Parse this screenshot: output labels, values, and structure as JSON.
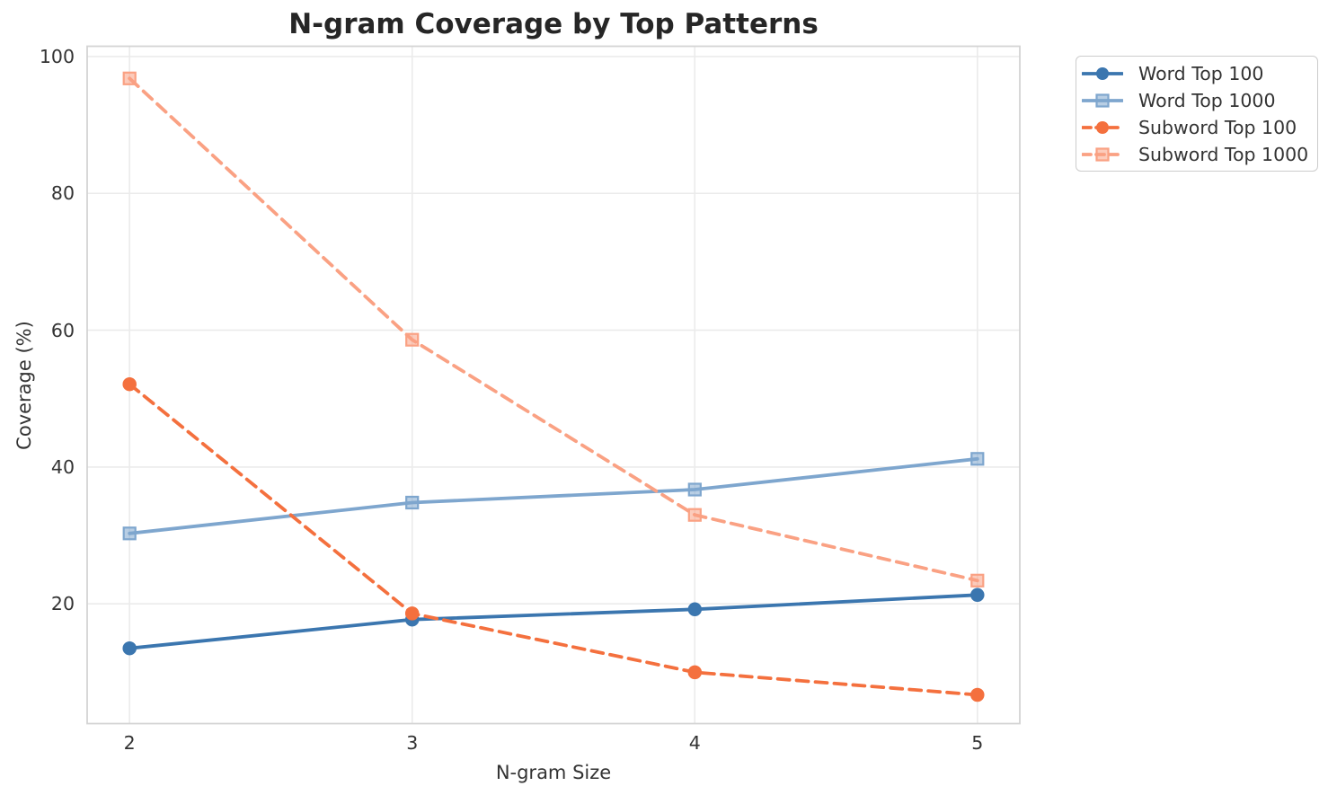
{
  "title": "N-gram Coverage by Top Patterns",
  "chart_data": {
    "type": "line",
    "title": "N-gram Coverage by Top Patterns",
    "xlabel": "N-gram Size",
    "ylabel": "Coverage (%)",
    "x": [
      2,
      3,
      4,
      5
    ],
    "series": [
      {
        "name": "Word Top 100",
        "values": [
          13.5,
          17.7,
          19.2,
          21.3
        ],
        "color": "#3b76af",
        "marker": "circle",
        "line_style": "solid"
      },
      {
        "name": "Word Top 1000",
        "values": [
          30.3,
          34.8,
          36.7,
          41.2
        ],
        "color": "#7ea6ce",
        "marker": "square",
        "line_style": "solid"
      },
      {
        "name": "Subword Top 100",
        "values": [
          52.1,
          18.6,
          10.0,
          6.7
        ],
        "color": "#f4703e",
        "marker": "circle",
        "line_style": "dashed"
      },
      {
        "name": "Subword Top 1000",
        "values": [
          96.8,
          58.6,
          33.0,
          23.4
        ],
        "color": "#faa183",
        "marker": "square",
        "line_style": "dashed"
      }
    ],
    "xticks": [
      2,
      3,
      4,
      5
    ],
    "yticks": [
      20,
      40,
      60,
      80,
      100
    ],
    "xlim": [
      1.85,
      5.15
    ],
    "ylim": [
      2.5,
      101.5
    ],
    "grid": true,
    "legend_position": "outside-upper-right",
    "colors": {
      "grid": "#ebebeb",
      "spine": "#d4d4d4",
      "tick_text": "#333333",
      "title_text": "#262626"
    }
  }
}
